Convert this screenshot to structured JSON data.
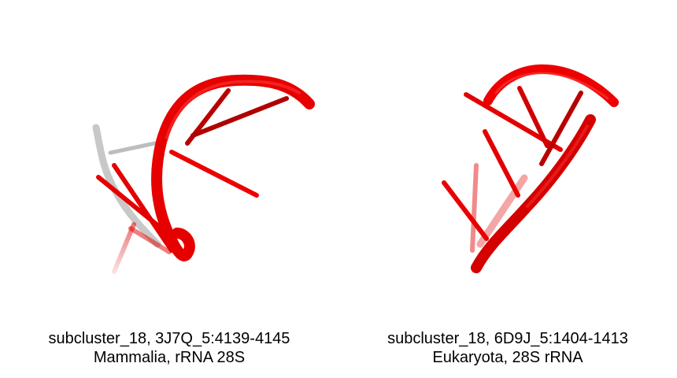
{
  "panels": [
    {
      "id_line": "subcluster_18, 3J7Q_5:4139-4145",
      "taxon_line": "Mammalia, rRNA 28S",
      "backbone_color": "#ee0000",
      "secondary_color": "#cccccc"
    },
    {
      "id_line": "subcluster_18, 6D9J_5:1404-1413",
      "taxon_line": "Eukaryota, 28S rRNA",
      "backbone_color": "#ee0000"
    }
  ]
}
